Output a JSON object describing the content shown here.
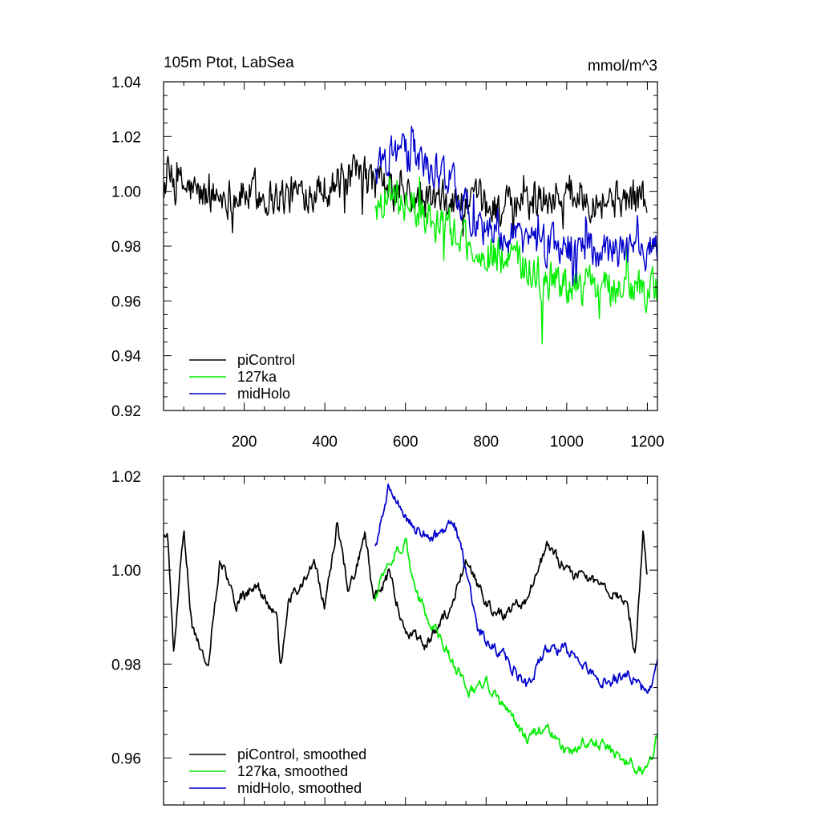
{
  "chart_data": [
    {
      "type": "line",
      "title": "105m Ptot, LabSea",
      "units": "mmol/m^3",
      "xlim": [
        0,
        1225
      ],
      "ylim": [
        0.92,
        1.04
      ],
      "xticks": [
        200,
        400,
        600,
        800,
        1000,
        1200
      ],
      "xtick_labels": [
        "200",
        "400",
        "600",
        "800",
        "1000",
        "1200"
      ],
      "yticks": [
        0.92,
        0.94,
        0.96,
        0.98,
        1.0,
        1.02,
        1.04
      ],
      "ytick_labels": [
        "0.92",
        "0.94",
        "0.96",
        "0.98",
        "1.00",
        "1.02",
        "1.04"
      ],
      "legend_position": "bottom-left",
      "series": [
        {
          "name": "piControl",
          "color": "#000000",
          "x_start": 1,
          "x_end": 1200,
          "noisy": true,
          "anchors": [
            [
              1,
              1.005
            ],
            [
              100,
              0.998
            ],
            [
              200,
              0.999
            ],
            [
              300,
              0.998
            ],
            [
              400,
              1.002
            ],
            [
              500,
              1.006
            ],
            [
              560,
              1.0
            ],
            [
              620,
              0.997
            ],
            [
              700,
              0.996
            ],
            [
              800,
              0.995
            ],
            [
              850,
              0.994
            ],
            [
              900,
              0.996
            ],
            [
              1000,
              1.0
            ],
            [
              1100,
              0.997
            ],
            [
              1200,
              0.998
            ]
          ]
        },
        {
          "name": "127ka",
          "color": "#00ee00",
          "x_start": 525,
          "x_end": 1225,
          "noisy": true,
          "anchors": [
            [
              525,
              0.995
            ],
            [
              560,
              0.999
            ],
            [
              600,
              0.995
            ],
            [
              650,
              0.992
            ],
            [
              700,
              0.987
            ],
            [
              760,
              0.98
            ],
            [
              800,
              0.977
            ],
            [
              900,
              0.972
            ],
            [
              950,
              0.968
            ],
            [
              1000,
              0.966
            ],
            [
              1100,
              0.965
            ],
            [
              1150,
              0.962
            ],
            [
              1225,
              0.965
            ]
          ]
        },
        {
          "name": "midHolo",
          "color": "#0000cc",
          "x_start": 525,
          "x_end": 1225,
          "noisy": true,
          "anchors": [
            [
              525,
              1.005
            ],
            [
              560,
              1.015
            ],
            [
              620,
              1.012
            ],
            [
              680,
              1.007
            ],
            [
              720,
              1.003
            ],
            [
              760,
              0.992
            ],
            [
              800,
              0.987
            ],
            [
              900,
              0.982
            ],
            [
              1000,
              0.98
            ],
            [
              1100,
              0.978
            ],
            [
              1150,
              0.976
            ],
            [
              1225,
              0.98
            ]
          ]
        }
      ]
    },
    {
      "type": "line",
      "xlim": [
        0,
        1225
      ],
      "ylim": [
        0.95,
        1.02
      ],
      "xticks": [
        200,
        400,
        600,
        800,
        1000,
        1200
      ],
      "yticks": [
        0.96,
        0.98,
        1.0,
        1.02
      ],
      "ytick_labels": [
        "0.96",
        "0.98",
        "1.00",
        "1.02"
      ],
      "legend_position": "bottom-left",
      "series": [
        {
          "name": "piControl, smoothed",
          "color": "#000000",
          "x_start": 1,
          "x_end": 1200,
          "noisy": false,
          "anchors": [
            [
              1,
              1.007
            ],
            [
              10,
              1.009
            ],
            [
              25,
              0.982
            ],
            [
              50,
              1.009
            ],
            [
              70,
              0.988
            ],
            [
              110,
              0.98
            ],
            [
              140,
              1.002
            ],
            [
              180,
              0.993
            ],
            [
              230,
              0.997
            ],
            [
              280,
              0.99
            ],
            [
              290,
              0.98
            ],
            [
              310,
              0.994
            ],
            [
              340,
              0.997
            ],
            [
              375,
              1.001
            ],
            [
              400,
              0.992
            ],
            [
              430,
              1.01
            ],
            [
              460,
              0.995
            ],
            [
              500,
              1.008
            ],
            [
              520,
              0.994
            ],
            [
              560,
              0.999
            ],
            [
              600,
              0.987
            ],
            [
              650,
              0.984
            ],
            [
              700,
              0.99
            ],
            [
              750,
              1.002
            ],
            [
              800,
              0.993
            ],
            [
              850,
              0.99
            ],
            [
              900,
              0.994
            ],
            [
              950,
              1.005
            ],
            [
              1000,
              1.0
            ],
            [
              1050,
              0.998
            ],
            [
              1100,
              0.996
            ],
            [
              1150,
              0.994
            ],
            [
              1170,
              0.982
            ],
            [
              1190,
              1.009
            ],
            [
              1200,
              0.997
            ]
          ]
        },
        {
          "name": "127ka, smoothed",
          "color": "#00ee00",
          "x_start": 525,
          "x_end": 1225,
          "noisy": false,
          "anchors": [
            [
              525,
              0.994
            ],
            [
              550,
              1.001
            ],
            [
              580,
              1.004
            ],
            [
              600,
              1.006
            ],
            [
              620,
              0.998
            ],
            [
              660,
              0.989
            ],
            [
              700,
              0.983
            ],
            [
              760,
              0.974
            ],
            [
              800,
              0.976
            ],
            [
              850,
              0.97
            ],
            [
              900,
              0.964
            ],
            [
              950,
              0.967
            ],
            [
              1000,
              0.961
            ],
            [
              1050,
              0.964
            ],
            [
              1100,
              0.962
            ],
            [
              1150,
              0.959
            ],
            [
              1200,
              0.957
            ],
            [
              1225,
              0.965
            ]
          ]
        },
        {
          "name": "midHolo, smoothed",
          "color": "#0000cc",
          "x_start": 525,
          "x_end": 1225,
          "noisy": false,
          "anchors": [
            [
              525,
              1.005
            ],
            [
              545,
              1.012
            ],
            [
              560,
              1.018
            ],
            [
              580,
              1.015
            ],
            [
              600,
              1.011
            ],
            [
              640,
              1.008
            ],
            [
              680,
              1.007
            ],
            [
              720,
              1.01
            ],
            [
              740,
              1.004
            ],
            [
              780,
              0.988
            ],
            [
              810,
              0.984
            ],
            [
              850,
              0.981
            ],
            [
              900,
              0.975
            ],
            [
              950,
              0.983
            ],
            [
              1000,
              0.983
            ],
            [
              1050,
              0.979
            ],
            [
              1100,
              0.976
            ],
            [
              1150,
              0.978
            ],
            [
              1200,
              0.974
            ],
            [
              1225,
              0.98
            ]
          ]
        }
      ]
    }
  ]
}
